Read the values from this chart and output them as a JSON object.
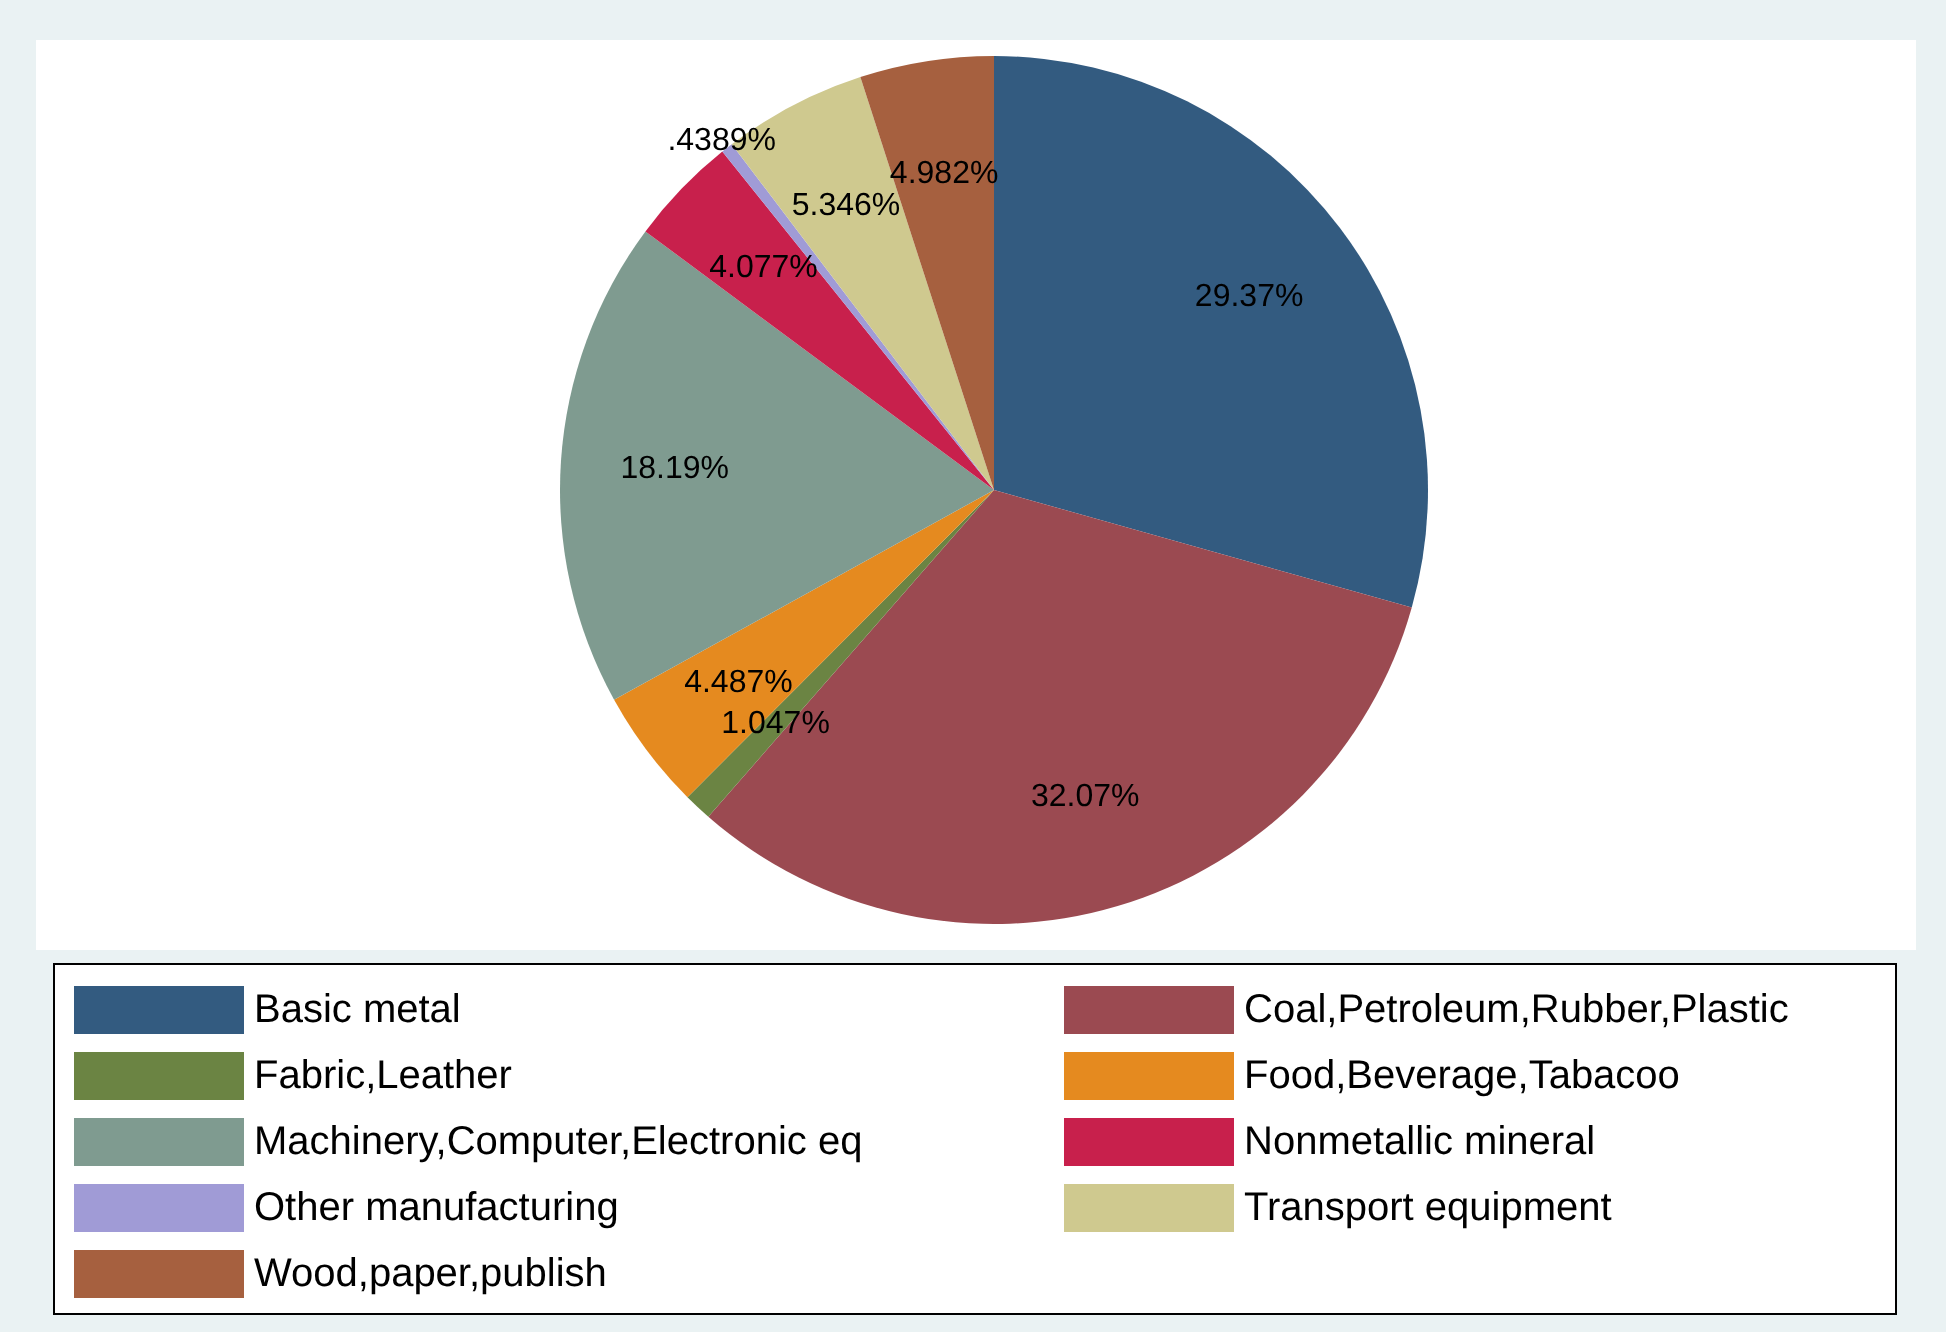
{
  "chart_data": {
    "type": "pie",
    "categories": [
      "Basic metal",
      "Coal,Petroleum,Rubber,Plastic",
      "Fabric,Leather",
      "Food,Beverage,Tabacoo",
      "Machinery,Computer,Electronic eq",
      "Nonmetallic mineral",
      "Other manufacturing",
      "Transport equipment",
      "Wood,paper,publish"
    ],
    "values": [
      29.37,
      32.07,
      1.047,
      4.487,
      18.19,
      4.077,
      0.4389,
      5.346,
      4.982
    ],
    "value_labels": [
      "29.37%",
      "32.07%",
      "1.047%",
      "4.487%",
      "18.19%",
      "4.077%",
      ".4389%",
      "5.346%",
      "4.982%"
    ],
    "colors": [
      "#335b80",
      "#9b4a51",
      "#6b8443",
      "#e58a1f",
      "#7f9b90",
      "#c8204c",
      "#a09bd6",
      "#cfc98f",
      "#a6603f"
    ],
    "legend": "bottom"
  }
}
